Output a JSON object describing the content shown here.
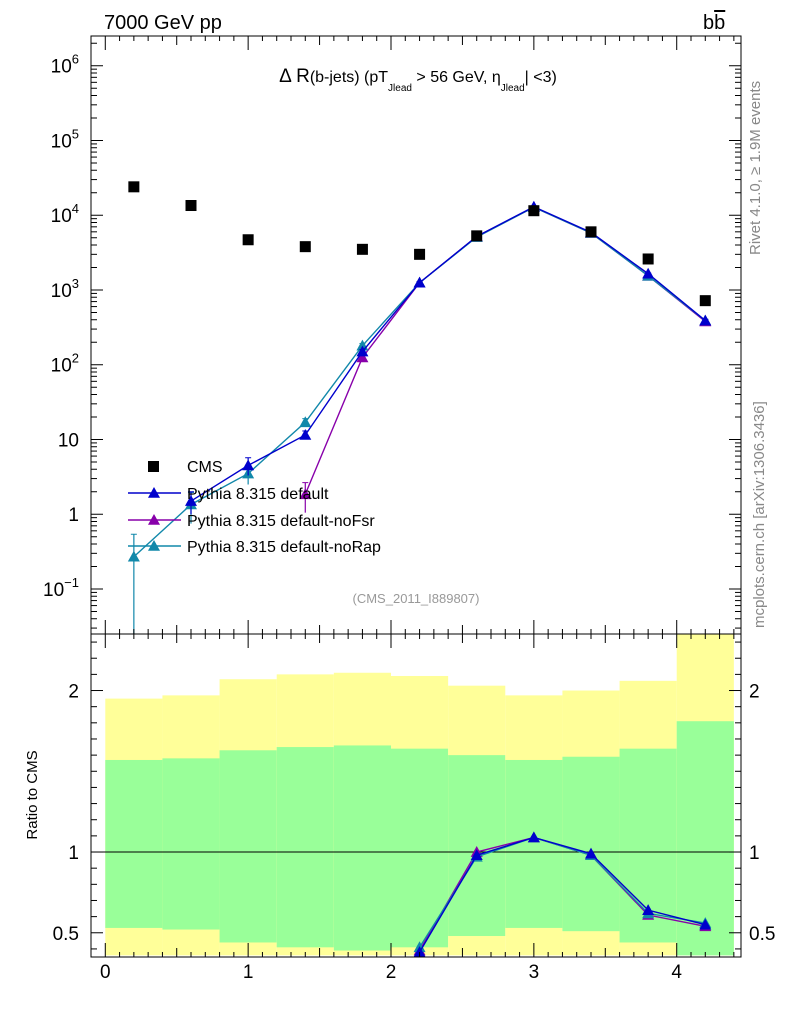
{
  "header": {
    "left": "7000 GeV pp",
    "right_main": "b",
    "right_bar": "b"
  },
  "title": {
    "prefix": "Δ R",
    "part1": "(b-jets) (pT",
    "sub1": "Jlead",
    "part2": " >  56 GeV, η",
    "sub2": "Jlead",
    "part3": "| <3)"
  },
  "side_labels": {
    "rivet": "Rivet 4.1.0, ≥ 1.9M events",
    "mcplots": "mcplots.cern.ch [arXiv:1306.3436]"
  },
  "analysis_id": "(CMS_2011_I889807)",
  "colors": {
    "cms": "#000000",
    "default": "#0000cc",
    "noFsr": "#8800aa",
    "noRap": "#1188aa",
    "band_yellow": "#ffff99",
    "band_green": "#99ff99"
  },
  "chart_data": [
    {
      "type": "scatter",
      "name": "main",
      "yscale": "log",
      "xlim": [
        -0.1,
        4.45
      ],
      "ylim": [
        0.025,
        2500000
      ],
      "ytick_labels": [
        {
          "v": 0.1,
          "base": "10",
          "exp": "−1"
        },
        {
          "v": 1,
          "base": "1",
          "exp": ""
        },
        {
          "v": 10,
          "base": "10",
          "exp": ""
        },
        {
          "v": 100,
          "base": "10",
          "exp": "2"
        },
        {
          "v": 1000,
          "base": "10",
          "exp": "3"
        },
        {
          "v": 10000,
          "base": "10",
          "exp": "4"
        },
        {
          "v": 100000,
          "base": "10",
          "exp": "5"
        },
        {
          "v": 1000000,
          "base": "10",
          "exp": "6"
        }
      ],
      "legend": [
        {
          "key": "cms",
          "label": "CMS"
        },
        {
          "key": "default",
          "label": "Pythia 8.315 default"
        },
        {
          "key": "noFsr",
          "label": "Pythia 8.315 default-noFsr"
        },
        {
          "key": "noRap",
          "label": "Pythia 8.315 default-noRap"
        }
      ],
      "series": {
        "cms": {
          "x": [
            0.2,
            0.6,
            1.0,
            1.4,
            1.8,
            2.2,
            2.6,
            3.0,
            3.4,
            3.8,
            4.2
          ],
          "y": [
            24000,
            13500,
            4700,
            3800,
            3500,
            3000,
            5300,
            11500,
            6000,
            2600,
            720
          ]
        },
        "default": {
          "x": [
            0.6,
            1.0,
            1.4,
            1.8,
            2.2,
            2.6,
            3.0,
            3.4,
            3.8,
            4.2
          ],
          "y": [
            1.5,
            4.5,
            11.5,
            150,
            1250,
            5200,
            13000,
            5900,
            1650,
            390
          ],
          "yerr": [
            0.5,
            1.2,
            1.5,
            10,
            40,
            100,
            200,
            100,
            40,
            15
          ]
        },
        "noFsr": {
          "x": [
            1.4,
            1.8,
            2.2,
            2.6,
            3.0,
            3.4,
            3.8,
            4.2
          ],
          "y": [
            1.85,
            125,
            1250,
            5200,
            12800,
            5800,
            1550,
            380
          ],
          "yerr": [
            0.8,
            10,
            40,
            100,
            200,
            100,
            40,
            15
          ]
        },
        "noRap": {
          "x": [
            0.2,
            0.6,
            1.0,
            1.4,
            1.8,
            2.2,
            2.6,
            3.0,
            3.4,
            3.8,
            4.2
          ],
          "y": [
            0.27,
            1.35,
            3.5,
            17,
            180,
            1250,
            5100,
            12800,
            5800,
            1550,
            390
          ],
          "yerr": [
            0.27,
            0.6,
            1.0,
            2.0,
            12,
            40,
            100,
            200,
            100,
            40,
            15
          ]
        }
      }
    },
    {
      "type": "line",
      "name": "ratio",
      "ylabel": "Ratio to CMS",
      "xlim": [
        -0.1,
        4.45
      ],
      "ylim": [
        0.35,
        2.35
      ],
      "xtick_labels": [
        0,
        1,
        2,
        3,
        4
      ],
      "ytick_labels": [
        {
          "v": 0.5,
          "t": "0.5"
        },
        {
          "v": 1,
          "t": "1"
        },
        {
          "v": 2,
          "t": "2"
        }
      ],
      "band_edges": [
        0.0,
        0.4,
        0.8,
        1.2,
        1.6,
        2.0,
        2.4,
        2.8,
        3.2,
        3.6,
        4.0,
        4.4
      ],
      "yellow_band": {
        "lo": [
          0.36,
          0.36,
          0.36,
          0.36,
          0.36,
          0.36,
          0.36,
          0.36,
          0.36,
          0.36,
          0.36
        ],
        "hi": [
          1.95,
          1.97,
          2.07,
          2.1,
          2.11,
          2.09,
          2.03,
          1.97,
          2.0,
          2.06,
          2.35
        ]
      },
      "green_band": {
        "lo": [
          0.53,
          0.52,
          0.44,
          0.41,
          0.39,
          0.41,
          0.48,
          0.53,
          0.51,
          0.44,
          0.36
        ],
        "hi": [
          1.57,
          1.58,
          1.63,
          1.65,
          1.66,
          1.64,
          1.6,
          1.57,
          1.59,
          1.64,
          1.81
        ]
      },
      "series": {
        "default": {
          "x": [
            2.2,
            2.6,
            3.0,
            3.4,
            3.8,
            4.2
          ],
          "y": [
            0.38,
            0.98,
            1.09,
            0.99,
            0.64,
            0.55
          ]
        },
        "noFsr": {
          "x": [
            2.2,
            2.6,
            3.0,
            3.4,
            3.8,
            4.2
          ],
          "y": [
            0.39,
            1.0,
            1.09,
            0.98,
            0.61,
            0.54
          ]
        },
        "noRap": {
          "x": [
            2.2,
            2.6,
            3.0,
            3.4,
            3.8,
            4.2
          ],
          "y": [
            0.41,
            0.97,
            1.09,
            0.98,
            0.62,
            0.56
          ]
        }
      }
    }
  ]
}
